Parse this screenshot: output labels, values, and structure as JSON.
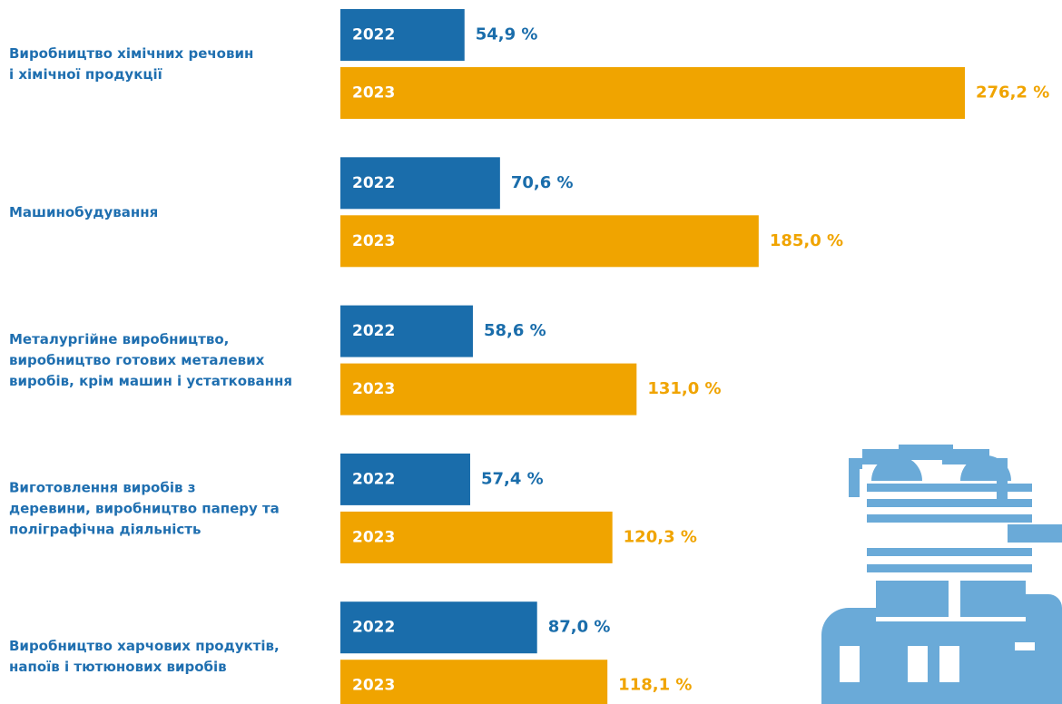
{
  "chart_data": {
    "type": "bar",
    "orientation": "horizontal",
    "categories": [
      [
        "Виробництво хімічних речовин",
        "і хімічної продукції"
      ],
      [
        "Машинобудування"
      ],
      [
        "Металургійне виробництво,",
        "виробництво готових металевих",
        "виробів, крім машин і устатковання"
      ],
      [
        "Виготовлення виробів з",
        "деревини, виробництво паперу та",
        "поліграфічна діяльність"
      ],
      [
        "Виробництво харчових продуктів,",
        "напоїв і тютюнових виробів"
      ]
    ],
    "series": [
      {
        "name": "2022",
        "color": "#1a6dab",
        "values": [
          54.9,
          70.6,
          58.6,
          57.4,
          87.0
        ],
        "value_labels": [
          "54,9 %",
          "70,6 %",
          "58,6 %",
          "57,4 %",
          "87,0 %"
        ]
      },
      {
        "name": "2023",
        "color": "#f0a400",
        "values": [
          276.2,
          185.0,
          131.0,
          120.3,
          118.1
        ],
        "value_labels": [
          "276,2 %",
          "185,0 %",
          "131,0 %",
          "120,3 %",
          "118,1 %"
        ]
      }
    ]
  }
}
